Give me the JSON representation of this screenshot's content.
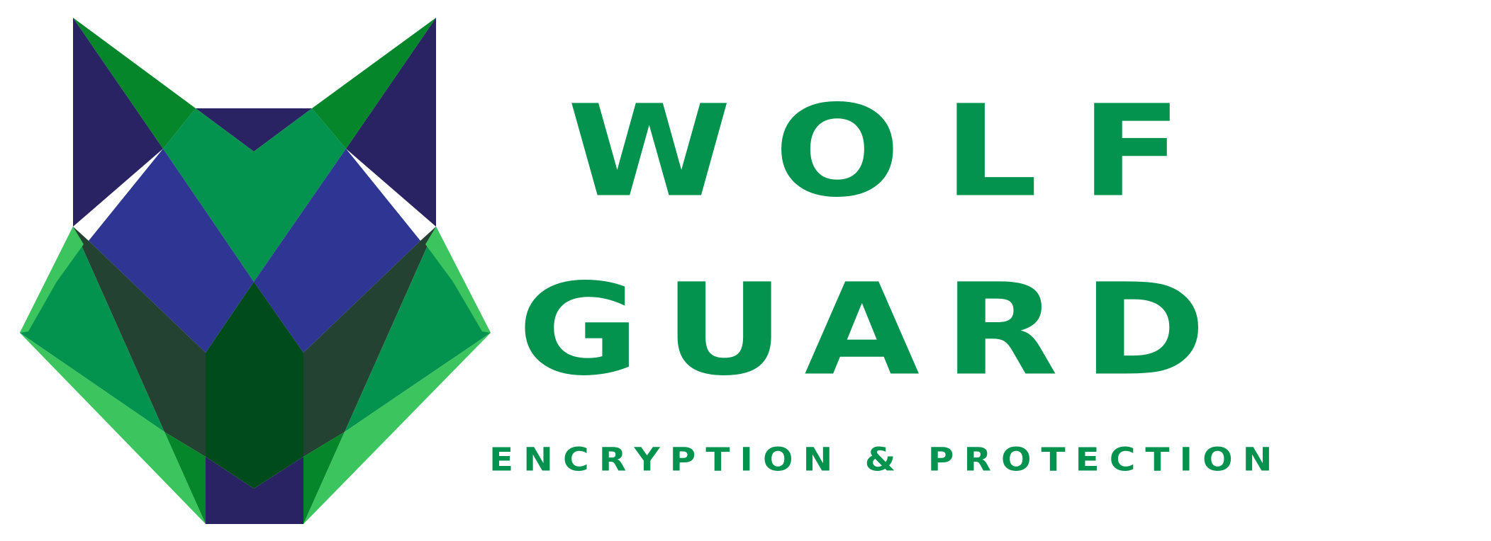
{
  "brand": {
    "line1": "WOLF",
    "line2": "GUARD",
    "tagline": "ENCRYPTION & PROTECTION"
  },
  "colors": {
    "brand_green": "#04924F",
    "navy": "#2A2363",
    "indigo": "#2F3593",
    "dark_green": "#234231",
    "forest": "#004B1C",
    "leaf": "#05862A",
    "light_green": "#3CC55F"
  },
  "logo": {
    "icon": "wolf-head-icon"
  }
}
